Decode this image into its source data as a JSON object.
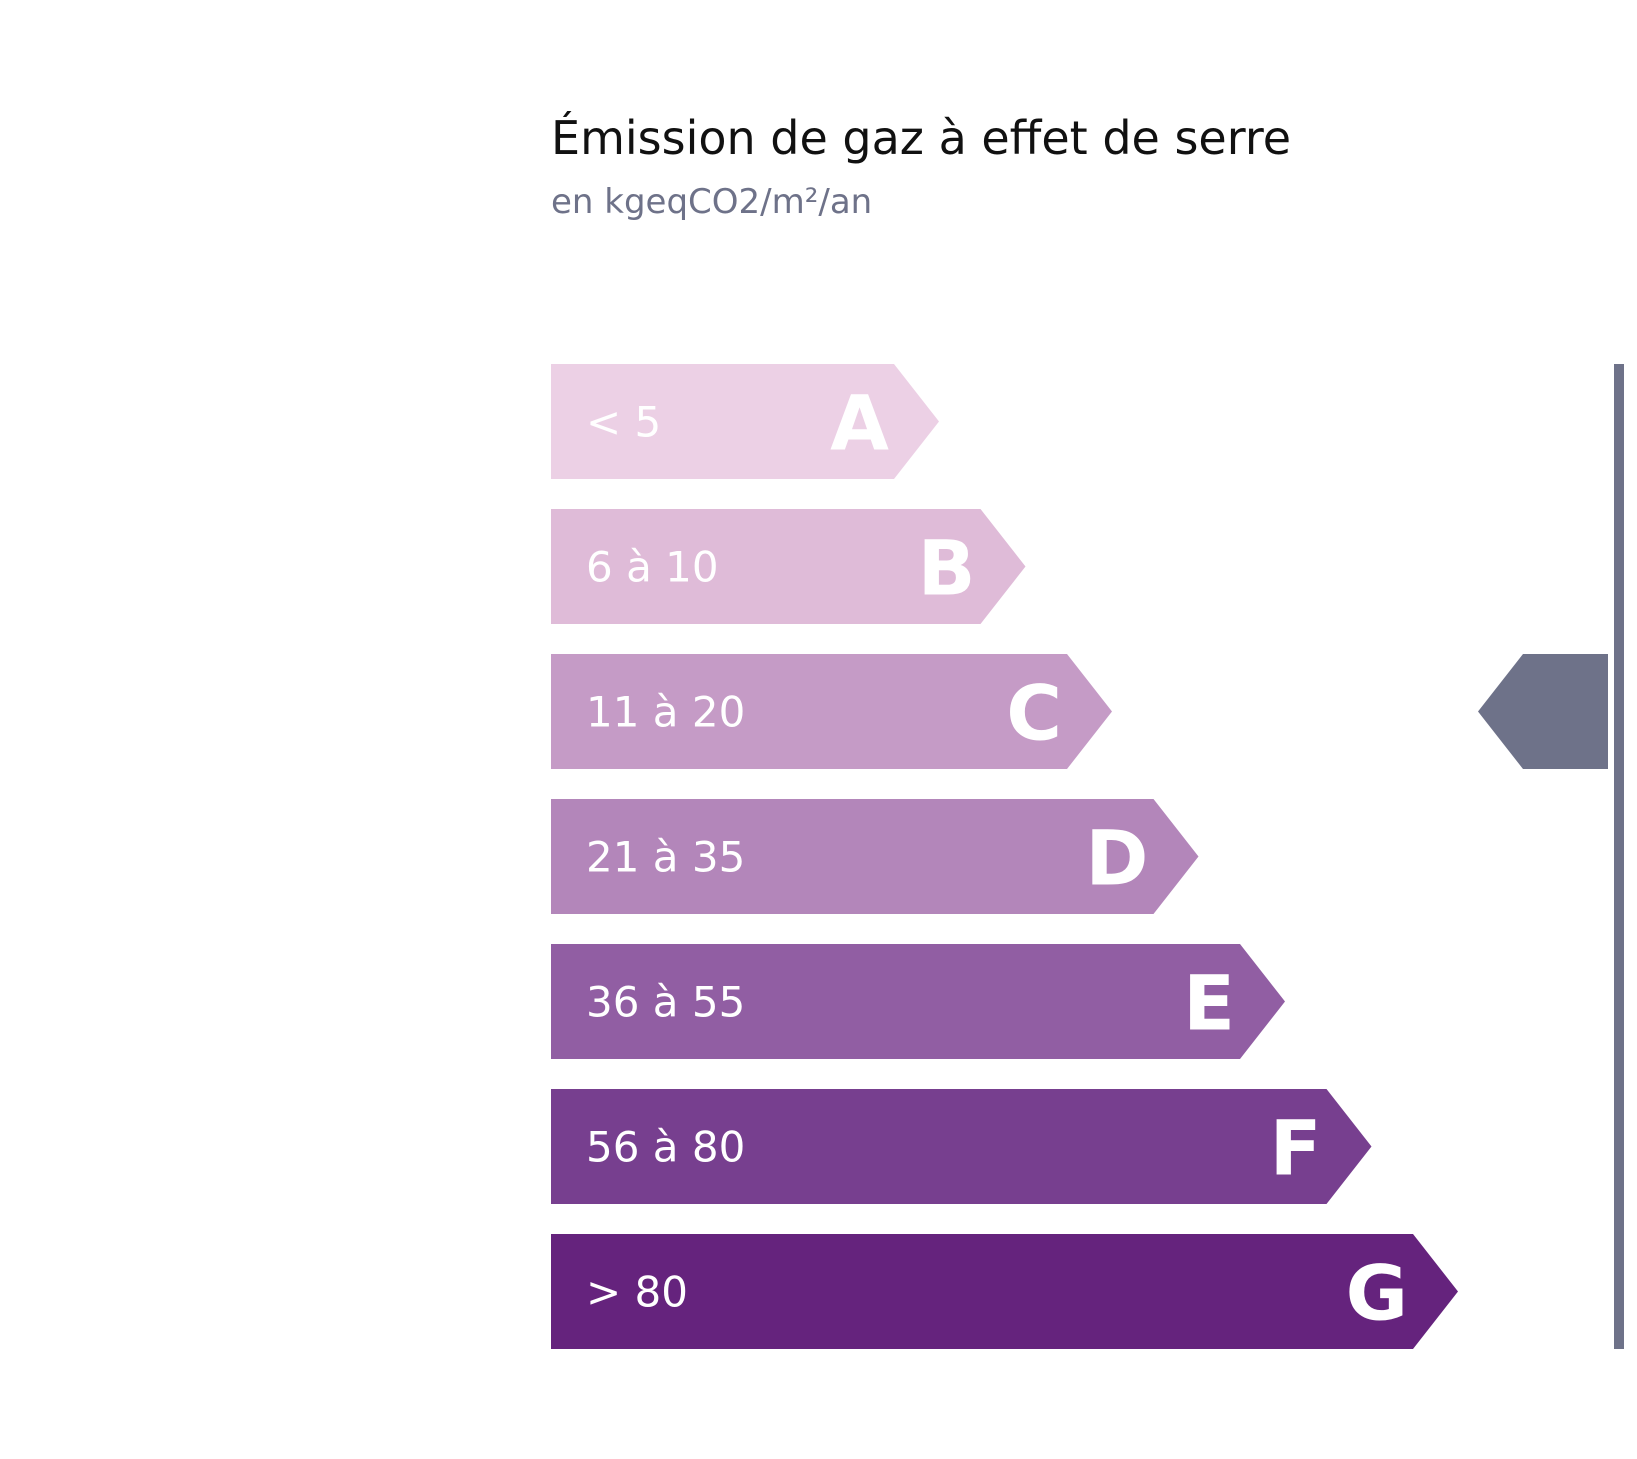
{
  "chart_data": {
    "type": "bar",
    "title": "Émission de gaz à effet de serre",
    "subtitle": "en kgeqCO2/m²/an",
    "categories": [
      "A",
      "B",
      "C",
      "D",
      "E",
      "F",
      "G"
    ],
    "ranges": [
      "< 5",
      "6 à 10",
      "11 à 20",
      "21 à 35",
      "36 à 55",
      "56 à 80",
      "> 80"
    ],
    "colors": [
      "#ecd0e5",
      "#dfbbd8",
      "#c59bc6",
      "#b386ba",
      "#915ea3",
      "#773f8f",
      "#65237d"
    ],
    "selected_class": "C",
    "indicator_color": "#6e7289"
  }
}
